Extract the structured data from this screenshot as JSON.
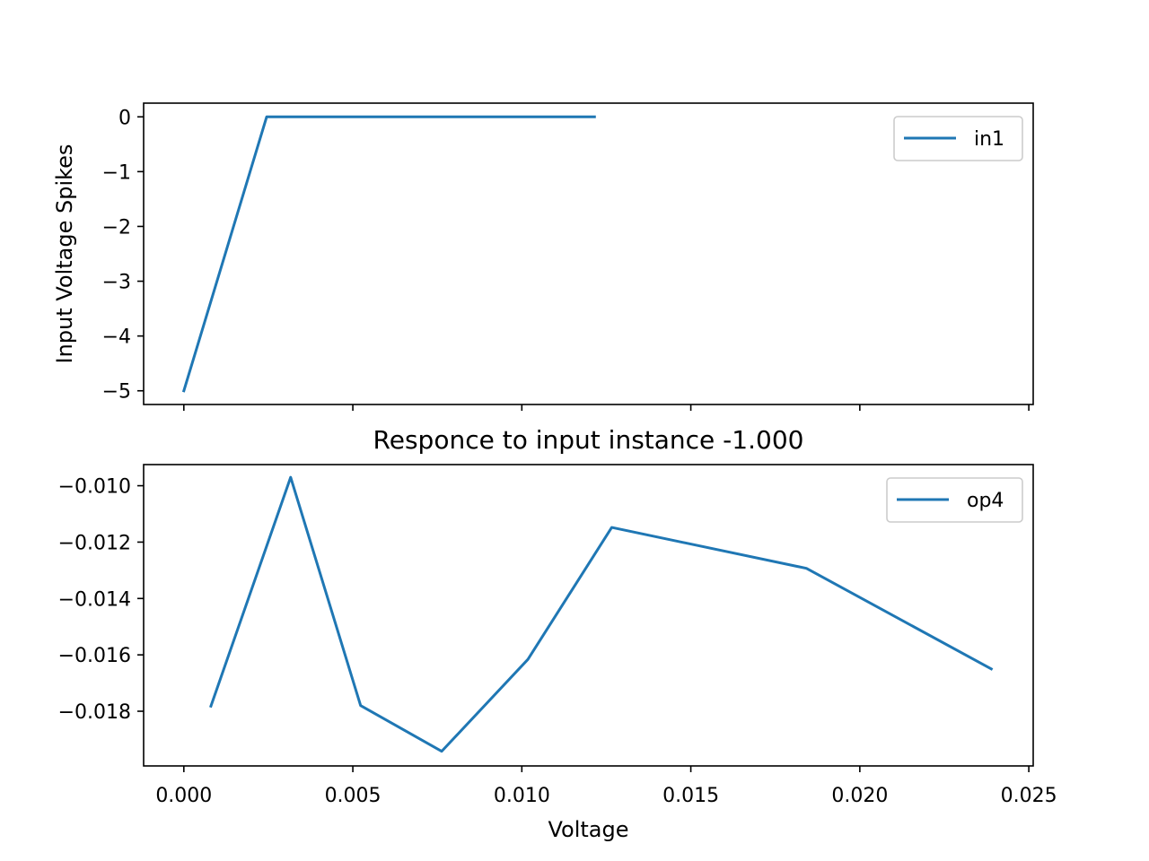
{
  "chart_data": [
    {
      "type": "line",
      "title": "",
      "xlabel": "",
      "ylabel": "Input Voltage Spikes",
      "xlim": [
        -0.00119,
        0.02513
      ],
      "ylim": [
        -5.25,
        0.25
      ],
      "xticks": [
        0.0,
        0.005,
        0.01,
        0.015,
        0.02,
        0.025
      ],
      "xtick_labels_visible": false,
      "yticks": [
        0,
        -1,
        -2,
        -3,
        -4,
        -5
      ],
      "ytick_labels": [
        "0",
        "−1",
        "−2",
        "−3",
        "−4",
        "−5"
      ],
      "legend": "top-right",
      "grid": false,
      "series": [
        {
          "name": "in1",
          "color": "#1f77b4",
          "x": [
            0.0,
            0.00245,
            0.01215
          ],
          "y": [
            -5.0,
            0.0,
            0.0
          ]
        }
      ]
    },
    {
      "type": "line",
      "title": "Responce to input instance -1.000",
      "xlabel": "Voltage",
      "ylabel": "",
      "xlim": [
        -0.00119,
        0.02513
      ],
      "ylim": [
        -0.01994,
        -0.00925
      ],
      "xticks": [
        0.0,
        0.005,
        0.01,
        0.015,
        0.02,
        0.025
      ],
      "xtick_labels": [
        "0.000",
        "0.005",
        "0.010",
        "0.015",
        "0.020",
        "0.025"
      ],
      "yticks": [
        -0.01,
        -0.012,
        -0.014,
        -0.016,
        -0.018
      ],
      "ytick_labels": [
        "−0.010",
        "−0.012",
        "−0.014",
        "−0.016",
        "−0.018"
      ],
      "legend": "top-right",
      "grid": false,
      "series": [
        {
          "name": "op4",
          "color": "#1f77b4",
          "x": [
            0.0008,
            0.00316,
            0.00523,
            0.00763,
            0.01018,
            0.01266,
            0.01842,
            0.02389
          ],
          "y": [
            -0.01782,
            -0.0097,
            -0.0178,
            -0.01942,
            -0.01616,
            -0.01148,
            -0.01293,
            -0.0165
          ]
        }
      ]
    }
  ]
}
